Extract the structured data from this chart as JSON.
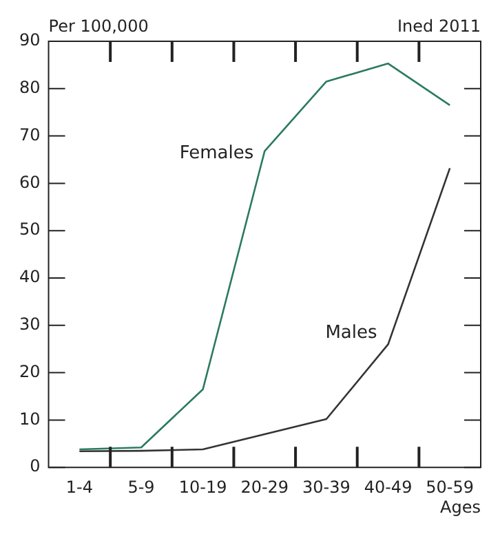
{
  "chart_data": {
    "type": "line",
    "ylabel": "Per 100,000",
    "xlabel": "Ages",
    "annotations": [
      "Ined 2011"
    ],
    "categories": [
      "1-4",
      "5-9",
      "10-19",
      "20-29",
      "30-39",
      "40-49",
      "50-59"
    ],
    "series": [
      {
        "name": "Females",
        "color": "#2a7a62",
        "values": [
          3.8,
          4.2,
          16.5,
          66.8,
          81.5,
          85.3,
          76.5
        ]
      },
      {
        "name": "Males",
        "color": "#333333",
        "values": [
          3.4,
          3.5,
          3.8,
          7,
          10.2,
          26,
          63.2
        ]
      }
    ],
    "ylim": [
      0,
      90
    ],
    "yticks": [
      0,
      10,
      20,
      30,
      40,
      50,
      60,
      70,
      80,
      90
    ],
    "grid": false,
    "legend": false,
    "marker": "none",
    "line_style": "solid"
  }
}
